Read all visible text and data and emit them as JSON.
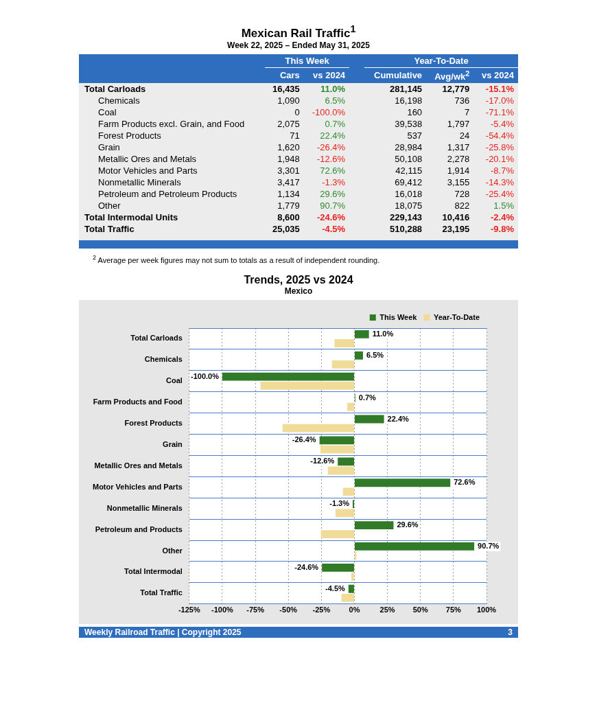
{
  "chart_data": [
    {
      "type": "other",
      "title": "Mexican Rail Traffic$^{1}$",
      "subtitle": "Week 22, 2025 – Ended May 31, 2025",
      "categories": [
        "Total Carloads",
        "Chemicals",
        "Coal",
        "Farm Products excl. Grain, and Food",
        "Forest Products",
        "Grain",
        "Metallic Ores and Metals",
        "Motor Vehicles and Parts",
        "Nonmetallic Minerals",
        "Petroleum and Petroleum Products",
        "Other",
        "Total Intermodal Units",
        "Total Traffic"
      ],
      "series": [
        {
          "name": "Cars",
          "values": [
            16435,
            1090,
            0,
            2075,
            71,
            1620,
            1948,
            3301,
            3417,
            1134,
            1779,
            8600,
            25035
          ],
          "value_labels": [
            "16,435",
            "1,090",
            "0",
            "2,075",
            "71",
            "1,620",
            "1,948",
            "3,301",
            "3,417",
            "1,134",
            "1,779",
            "8,600",
            "25,035"
          ]
        },
        {
          "name": "vs 2024",
          "colors": [
            "#2e8b2e",
            "#2e8b2e",
            "#e8231f",
            "#2e8b2e",
            "#2e8b2e",
            "#e8231f",
            "#e8231f",
            "#2e8b2e",
            "#e8231f",
            "#2e8b2e",
            "#2e8b2e",
            "#e8231f",
            "#e8231f"
          ],
          "values": [
            11.0,
            6.5,
            -100.0,
            0.7,
            22.4,
            -26.4,
            -12.6,
            72.6,
            -1.3,
            29.6,
            90.7,
            -24.6,
            -4.5
          ],
          "value_labels": [
            "11.0%",
            "6.5%",
            "-100.0%",
            "0.7%",
            "22.4%",
            "-26.4%",
            "-12.6%",
            "72.6%",
            "-1.3%",
            "29.6%",
            "90.7%",
            "-24.6%",
            "-4.5%"
          ]
        },
        {
          "name": "Cumulative",
          "values": [
            281145,
            16198,
            160,
            39538,
            537,
            28984,
            50108,
            42115,
            69412,
            16018,
            18075,
            229143,
            510288
          ],
          "value_labels": [
            "281,145",
            "16,198",
            "160",
            "39,538",
            "537",
            "28,984",
            "50,108",
            "42,115",
            "69,412",
            "16,018",
            "18,075",
            "229,143",
            "510,288"
          ]
        },
        {
          "name": "Avg/wk$^{2}$",
          "values": [
            12779,
            736,
            7,
            1797,
            24,
            1317,
            2278,
            1914,
            3155,
            728,
            822,
            10416,
            23195
          ],
          "value_labels": [
            "12,779",
            "736",
            "7",
            "1,797",
            "24",
            "1,317",
            "2,278",
            "1,914",
            "3,155",
            "728",
            "822",
            "10,416",
            "23,195"
          ]
        },
        {
          "name": "vs 2024",
          "colors": [
            "#e8231f",
            "#e8231f",
            "#e8231f",
            "#e8231f",
            "#e8231f",
            "#e8231f",
            "#e8231f",
            "#e8231f",
            "#e8231f",
            "#e8231f",
            "#2e8b2e",
            "#e8231f",
            "#e8231f"
          ],
          "values": [
            -15.1,
            -17.0,
            -71.1,
            -5.4,
            -54.4,
            -25.8,
            -20.1,
            -8.7,
            -14.3,
            -25.4,
            1.5,
            -2.4,
            -9.8
          ],
          "value_labels": [
            "-15.1%",
            "-17.0%",
            "-71.1%",
            "-5.4%",
            "-54.4%",
            "-25.8%",
            "-20.1%",
            "-8.7%",
            "-14.3%",
            "-25.4%",
            "1.5%",
            "-2.4%",
            "-9.8%"
          ]
        }
      ],
      "annotations": [
        "This Week",
        "Year-To-Date",
        "$^{2}$ Average per week figures may not sum to totals as a result of independent rounding.",
        "Weekly Railroad Traffic | Copyright 2025",
        "3"
      ]
    },
    {
      "type": "bar",
      "orientation": "horizontal",
      "title": "Trends, 2025 vs 2024",
      "subtitle": "Mexico",
      "categories": [
        "Total Carloads",
        "Chemicals",
        "Coal",
        "Farm Products and Food",
        "Forest Products",
        "Grain",
        "Metallic Ores and Metals",
        "Motor Vehicles and Parts",
        "Nonmetallic Minerals",
        "Petroleum and Products",
        "Other",
        "Total Intermodal",
        "Total Traffic"
      ],
      "series": [
        {
          "name": "This Week",
          "color": "#317a28",
          "values": [
            11.0,
            6.5,
            -100.0,
            0.7,
            22.4,
            -26.4,
            -12.6,
            72.6,
            -1.3,
            29.6,
            90.7,
            -24.6,
            -4.5
          ],
          "value_labels": [
            "11.0%",
            "6.5%",
            "-100.0%",
            "0.7%",
            "22.4%",
            "-26.4%",
            "-12.6%",
            "72.6%",
            "-1.3%",
            "29.6%",
            "90.7%",
            "-24.6%",
            "-4.5%"
          ]
        },
        {
          "name": "Year-To-Date",
          "color": "#f0dc98",
          "values": [
            -15.1,
            -17.0,
            -71.1,
            -5.4,
            -54.4,
            -25.8,
            -20.1,
            -8.7,
            -14.3,
            -25.4,
            1.5,
            -2.4,
            -9.8
          ]
        }
      ],
      "xlim": [
        -125,
        100
      ],
      "xticks": [
        {
          "value": -125,
          "label": "-125%"
        },
        {
          "value": -100,
          "label": "-100%"
        },
        {
          "value": -75,
          "label": "-75%"
        },
        {
          "value": -50,
          "label": "-50%"
        },
        {
          "value": -25,
          "label": "-25%"
        },
        {
          "value": 0,
          "label": "0%"
        },
        {
          "value": 25,
          "label": "25%"
        },
        {
          "value": 50,
          "label": "50%"
        },
        {
          "value": 75,
          "label": "75%"
        },
        {
          "value": 100,
          "label": "100%"
        }
      ],
      "grid": true,
      "legend": "top right"
    }
  ]
}
